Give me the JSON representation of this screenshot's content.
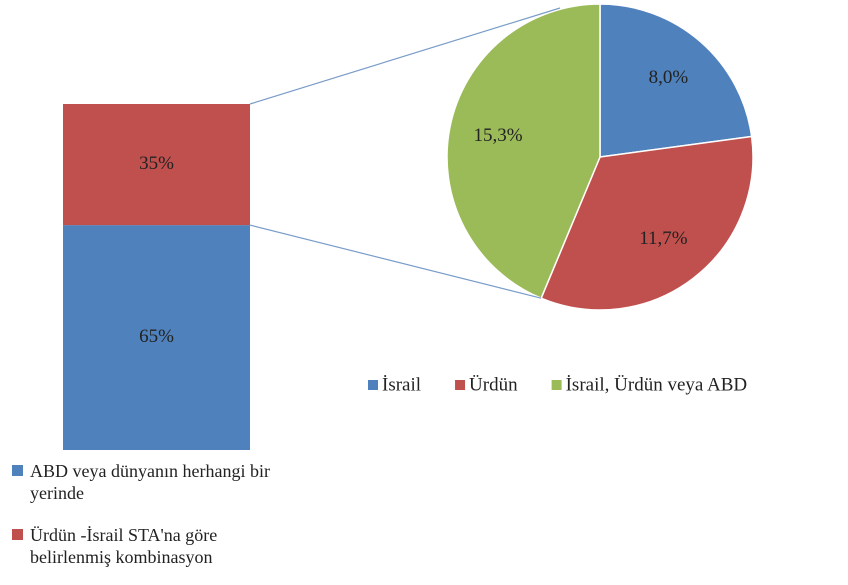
{
  "chart_data": [
    {
      "type": "bar",
      "stacked": true,
      "categories": [
        null
      ],
      "series": [
        {
          "name": "ABD veya dünyanın herhangi bir yerinde",
          "color": "#4f81bd",
          "values": [
            65
          ],
          "value_labels": [
            "65%"
          ]
        },
        {
          "name": "Ürdün -İsrail STA'na göre belirlenmiş kombinasyon",
          "color": "#c0504d",
          "values": [
            35
          ],
          "value_labels": [
            "35%"
          ]
        }
      ]
    },
    {
      "type": "pie",
      "categories": [
        "İsrail",
        "Ürdün",
        "İsrail, Ürdün veya ABD"
      ],
      "values": [
        8.0,
        11.7,
        15.3
      ],
      "value_labels": [
        "8,0%",
        "11,7%",
        "15,3%"
      ],
      "colors": [
        "#4f81bd",
        "#c0504d",
        "#9bbb59"
      ]
    }
  ]
}
